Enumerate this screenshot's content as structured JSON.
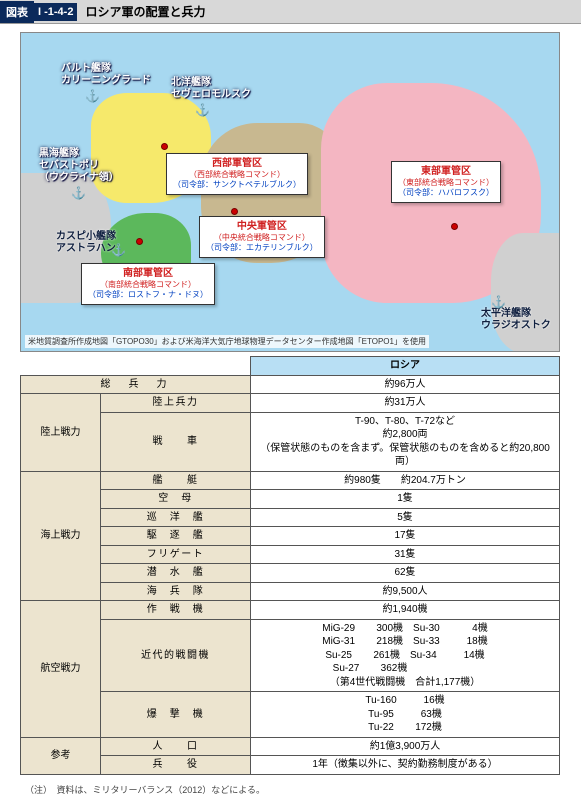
{
  "header": {
    "tag": "図表",
    "code": "I -1-4-2",
    "title": "ロシア軍の配置と兵力"
  },
  "map": {
    "labels": {
      "baltic": "バルト艦隊\nカリーニングラード",
      "northern": "北洋艦隊\nセヴェロモルスク",
      "black": "黒海艦隊\nセバストポリ\n（ウクライナ領）",
      "caspian": "カスピ小艦隊\nアストラハン",
      "pacific": "太平洋艦隊\nウラジオストク"
    },
    "callouts": {
      "west": {
        "title": "西部軍管区",
        "sub": "（西部統合戦略コマンド）",
        "hq": "（司令部：サンクトペテルブルク）"
      },
      "center": {
        "title": "中央軍管区",
        "sub": "（中央統合戦略コマンド）",
        "hq": "（司令部：エカテリンブルク）"
      },
      "south": {
        "title": "南部軍管区",
        "sub": "（南部統合戦略コマンド）",
        "hq": "（司令部：ロストフ・ナ・ドヌ）"
      },
      "east": {
        "title": "東部軍管区",
        "sub": "（東部統合戦略コマンド）",
        "hq": "（司令部：ハバロフスク）"
      }
    },
    "credit": "米地質調査所作成地図「GTOPO30」および米海洋大気庁地球物理データセンター作成地図「ETOPO1」を使用"
  },
  "table": {
    "country": "ロシア",
    "total_forces_label": "総　兵　力",
    "total_forces": "約96万人",
    "ground": {
      "label": "陸上戦力",
      "ground_forces_label": "陸上兵力",
      "ground_forces": "約31万人",
      "tanks_label": "戦　　車",
      "tanks_types": "T-90、T-80、T-72など",
      "tanks_count": "約2,800両",
      "tanks_note": "（保管状態のものを含まず。保管状態のものを含めると約20,800両）"
    },
    "naval": {
      "label": "海上戦力",
      "ships_label": "艦　　艇",
      "ships": "約980隻　　約204.7万トン",
      "carrier_label": "空　母",
      "carrier": "1隻",
      "cruiser_label": "巡　洋　艦",
      "cruiser": "5隻",
      "destroyer_label": "駆　逐　艦",
      "destroyer": "17隻",
      "frigate_label": "フリゲート",
      "frigate": "31隻",
      "submarine_label": "潜　水　艦",
      "submarine": "62隻",
      "marines_label": "海　兵　隊",
      "marines": "約9,500人"
    },
    "air": {
      "label": "航空戦力",
      "combat_label": "作　戦　機",
      "combat": "約1,940機",
      "modern_label": "近代的戦闘機",
      "modern": [
        [
          "MiG-29",
          "300機",
          "Su-30",
          "4機"
        ],
        [
          "MiG-31",
          "218機",
          "Su-33",
          "18機"
        ],
        [
          "Su-25",
          "261機",
          "Su-34",
          "14機"
        ],
        [
          "Su-27",
          "362機",
          "",
          ""
        ]
      ],
      "modern_total": "（第4世代戦闘機　合計1,177機）",
      "bomber_label": "爆　撃　機",
      "bombers": [
        [
          "Tu-160",
          "16機"
        ],
        [
          "Tu-95",
          "63機"
        ],
        [
          "Tu-22",
          "172機"
        ]
      ]
    },
    "ref": {
      "label": "参考",
      "population_label": "人　　口",
      "population": "約1億3,900万人",
      "service_label": "兵　　役",
      "service": "1年（徴集以外に、契約勤務制度がある）"
    }
  },
  "footnote": "（注）　資料は、ミリタリーバランス（2012）などによる。"
}
